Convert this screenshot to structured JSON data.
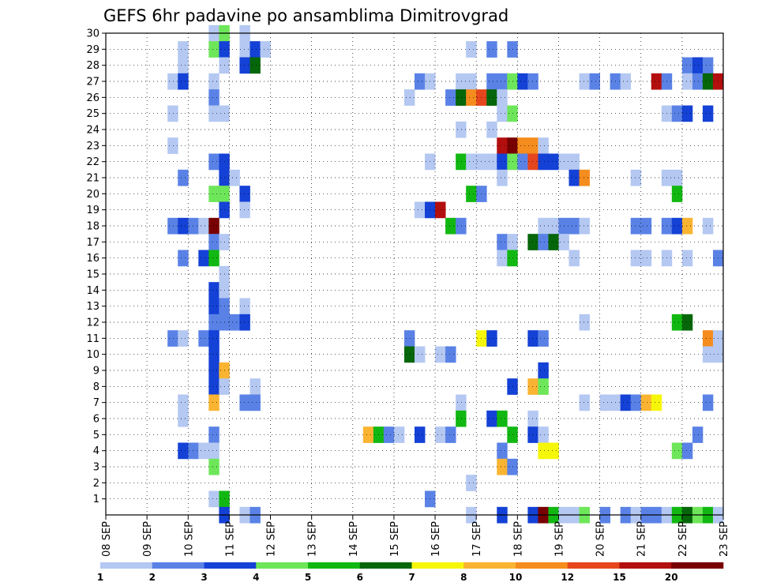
{
  "chart_data": {
    "type": "heatmap",
    "title": "GEFS 6hr padavine po ansamblima Dimitrovgrad",
    "xlabel": "",
    "ylabel": "",
    "x_tick_labels": [
      "08 SEP",
      "09 SEP",
      "10 SEP",
      "11 SEP",
      "12 SEP",
      "13 SEP",
      "14 SEP",
      "15 SEP",
      "16 SEP",
      "17 SEP",
      "18 SEP",
      "19 SEP",
      "20 SEP",
      "21 SEP",
      "22 SEP",
      "23 SEP"
    ],
    "x_steps_per_day": 4,
    "x_range_steps": [
      0,
      60
    ],
    "y_tick_labels": [
      "1",
      "2",
      "3",
      "4",
      "5",
      "6",
      "7",
      "8",
      "9",
      "10",
      "11",
      "12",
      "13",
      "14",
      "15",
      "16",
      "17",
      "18",
      "19",
      "20",
      "21",
      "22",
      "23",
      "24",
      "25",
      "26",
      "27",
      "28",
      "29",
      "30"
    ],
    "y_range_members": [
      0,
      30
    ],
    "grid": "dotted",
    "colorbar": {
      "position": "bottom",
      "labels": [
        "1",
        "2",
        "3",
        "4",
        "5",
        "6",
        "7",
        "8",
        "10",
        "12",
        "15",
        "20"
      ],
      "colors": [
        "#b4c8f2",
        "#5a82e6",
        "#1441d6",
        "#6ee65a",
        "#12b812",
        "#06660a",
        "#f6f60a",
        "#fab432",
        "#f58c1e",
        "#e6461e",
        "#b40f0f",
        "#780000"
      ]
    },
    "cells_format": "[member, step, colorbar_class]",
    "cells": [
      [
        30,
        10,
        0
      ],
      [
        30,
        11,
        3
      ],
      [
        30,
        13,
        0
      ],
      [
        29,
        7,
        0
      ],
      [
        29,
        10,
        3
      ],
      [
        29,
        11,
        2
      ],
      [
        29,
        13,
        0
      ],
      [
        29,
        14,
        2
      ],
      [
        29,
        15,
        0
      ],
      [
        29,
        35,
        0
      ],
      [
        29,
        37,
        1
      ],
      [
        29,
        39,
        1
      ],
      [
        28,
        7,
        0
      ],
      [
        28,
        11,
        0
      ],
      [
        28,
        13,
        2
      ],
      [
        28,
        14,
        5
      ],
      [
        28,
        56,
        1
      ],
      [
        28,
        57,
        2
      ],
      [
        28,
        58,
        1
      ],
      [
        27,
        6,
        0
      ],
      [
        27,
        7,
        2
      ],
      [
        27,
        10,
        0
      ],
      [
        27,
        30,
        1
      ],
      [
        27,
        31,
        0
      ],
      [
        27,
        34,
        0
      ],
      [
        27,
        35,
        0
      ],
      [
        27,
        37,
        1
      ],
      [
        27,
        38,
        1
      ],
      [
        27,
        39,
        3
      ],
      [
        27,
        40,
        2
      ],
      [
        27,
        41,
        1
      ],
      [
        27,
        46,
        0
      ],
      [
        27,
        47,
        1
      ],
      [
        27,
        49,
        1
      ],
      [
        27,
        50,
        0
      ],
      [
        27,
        53,
        10
      ],
      [
        27,
        54,
        1
      ],
      [
        27,
        56,
        0
      ],
      [
        27,
        57,
        1
      ],
      [
        27,
        58,
        5
      ],
      [
        27,
        59,
        10
      ],
      [
        26,
        10,
        1
      ],
      [
        26,
        29,
        0
      ],
      [
        26,
        33,
        1
      ],
      [
        26,
        34,
        5
      ],
      [
        26,
        35,
        8
      ],
      [
        26,
        36,
        9
      ],
      [
        26,
        37,
        5
      ],
      [
        26,
        38,
        0
      ],
      [
        25,
        6,
        0
      ],
      [
        25,
        10,
        0
      ],
      [
        25,
        11,
        0
      ],
      [
        25,
        38,
        0
      ],
      [
        25,
        39,
        3
      ],
      [
        25,
        54,
        0
      ],
      [
        25,
        55,
        1
      ],
      [
        25,
        56,
        2
      ],
      [
        25,
        58,
        2
      ],
      [
        24,
        34,
        0
      ],
      [
        24,
        37,
        0
      ],
      [
        23,
        6,
        0
      ],
      [
        23,
        38,
        10
      ],
      [
        23,
        39,
        11
      ],
      [
        23,
        40,
        8
      ],
      [
        23,
        41,
        8
      ],
      [
        23,
        42,
        0
      ],
      [
        22,
        10,
        1
      ],
      [
        22,
        11,
        2
      ],
      [
        22,
        31,
        0
      ],
      [
        22,
        34,
        4
      ],
      [
        22,
        35,
        0
      ],
      [
        22,
        36,
        0
      ],
      [
        22,
        37,
        0
      ],
      [
        22,
        38,
        2
      ],
      [
        22,
        39,
        3
      ],
      [
        22,
        40,
        1
      ],
      [
        22,
        41,
        9
      ],
      [
        22,
        42,
        2
      ],
      [
        22,
        43,
        2
      ],
      [
        22,
        44,
        0
      ],
      [
        22,
        45,
        0
      ],
      [
        21,
        7,
        1
      ],
      [
        21,
        11,
        2
      ],
      [
        21,
        12,
        0
      ],
      [
        21,
        38,
        0
      ],
      [
        21,
        45,
        2
      ],
      [
        21,
        46,
        8
      ],
      [
        21,
        51,
        0
      ],
      [
        21,
        54,
        0
      ],
      [
        21,
        55,
        0
      ],
      [
        20,
        10,
        3
      ],
      [
        20,
        11,
        3
      ],
      [
        20,
        13,
        2
      ],
      [
        20,
        35,
        4
      ],
      [
        20,
        36,
        1
      ],
      [
        20,
        55,
        4
      ],
      [
        19,
        11,
        2
      ],
      [
        19,
        13,
        0
      ],
      [
        19,
        30,
        0
      ],
      [
        19,
        31,
        2
      ],
      [
        19,
        32,
        10
      ],
      [
        18,
        6,
        1
      ],
      [
        18,
        7,
        2
      ],
      [
        18,
        8,
        1
      ],
      [
        18,
        9,
        0
      ],
      [
        18,
        10,
        11
      ],
      [
        18,
        33,
        4
      ],
      [
        18,
        34,
        1
      ],
      [
        18,
        42,
        0
      ],
      [
        18,
        43,
        0
      ],
      [
        18,
        44,
        1
      ],
      [
        18,
        45,
        1
      ],
      [
        18,
        46,
        0
      ],
      [
        18,
        51,
        1
      ],
      [
        18,
        52,
        1
      ],
      [
        18,
        54,
        1
      ],
      [
        18,
        55,
        2
      ],
      [
        18,
        56,
        7
      ],
      [
        18,
        58,
        0
      ],
      [
        17,
        10,
        1
      ],
      [
        17,
        11,
        0
      ],
      [
        17,
        38,
        1
      ],
      [
        17,
        39,
        0
      ],
      [
        17,
        41,
        5
      ],
      [
        17,
        42,
        1
      ],
      [
        17,
        43,
        5
      ],
      [
        17,
        44,
        0
      ],
      [
        16,
        7,
        1
      ],
      [
        16,
        9,
        2
      ],
      [
        16,
        10,
        4
      ],
      [
        16,
        38,
        0
      ],
      [
        16,
        39,
        4
      ],
      [
        16,
        45,
        0
      ],
      [
        16,
        51,
        0
      ],
      [
        16,
        52,
        0
      ],
      [
        16,
        54,
        0
      ],
      [
        16,
        56,
        0
      ],
      [
        16,
        59,
        1
      ],
      [
        15,
        11,
        0
      ],
      [
        14,
        10,
        2
      ],
      [
        14,
        11,
        0
      ],
      [
        13,
        10,
        2
      ],
      [
        13,
        11,
        1
      ],
      [
        13,
        13,
        0
      ],
      [
        12,
        10,
        1
      ],
      [
        12,
        11,
        1
      ],
      [
        12,
        12,
        1
      ],
      [
        12,
        13,
        2
      ],
      [
        12,
        46,
        0
      ],
      [
        12,
        55,
        4
      ],
      [
        12,
        56,
        5
      ],
      [
        11,
        6,
        1
      ],
      [
        11,
        7,
        0
      ],
      [
        11,
        9,
        1
      ],
      [
        11,
        10,
        2
      ],
      [
        11,
        29,
        1
      ],
      [
        11,
        36,
        6
      ],
      [
        11,
        37,
        2
      ],
      [
        11,
        41,
        2
      ],
      [
        11,
        42,
        1
      ],
      [
        11,
        58,
        8
      ],
      [
        11,
        59,
        0
      ],
      [
        10,
        10,
        2
      ],
      [
        10,
        29,
        5
      ],
      [
        10,
        30,
        0
      ],
      [
        10,
        32,
        0
      ],
      [
        10,
        33,
        1
      ],
      [
        10,
        58,
        0
      ],
      [
        10,
        59,
        0
      ],
      [
        9,
        10,
        2
      ],
      [
        9,
        11,
        7
      ],
      [
        9,
        42,
        2
      ],
      [
        8,
        10,
        2
      ],
      [
        8,
        11,
        0
      ],
      [
        8,
        14,
        0
      ],
      [
        8,
        39,
        2
      ],
      [
        8,
        41,
        7
      ],
      [
        8,
        42,
        3
      ],
      [
        7,
        7,
        0
      ],
      [
        7,
        10,
        7
      ],
      [
        7,
        13,
        1
      ],
      [
        7,
        14,
        1
      ],
      [
        7,
        34,
        0
      ],
      [
        7,
        46,
        0
      ],
      [
        7,
        48,
        0
      ],
      [
        7,
        49,
        0
      ],
      [
        7,
        50,
        2
      ],
      [
        7,
        51,
        1
      ],
      [
        7,
        52,
        7
      ],
      [
        7,
        53,
        6
      ],
      [
        7,
        58,
        1
      ],
      [
        6,
        7,
        0
      ],
      [
        6,
        34,
        4
      ],
      [
        6,
        37,
        2
      ],
      [
        6,
        38,
        4
      ],
      [
        6,
        41,
        0
      ],
      [
        5,
        10,
        1
      ],
      [
        5,
        25,
        7
      ],
      [
        5,
        26,
        4
      ],
      [
        5,
        27,
        1
      ],
      [
        5,
        28,
        0
      ],
      [
        5,
        30,
        2
      ],
      [
        5,
        32,
        0
      ],
      [
        5,
        33,
        1
      ],
      [
        5,
        39,
        4
      ],
      [
        5,
        41,
        2
      ],
      [
        5,
        42,
        0
      ],
      [
        5,
        57,
        1
      ],
      [
        4,
        7,
        2
      ],
      [
        4,
        8,
        1
      ],
      [
        4,
        9,
        0
      ],
      [
        4,
        10,
        0
      ],
      [
        4,
        38,
        1
      ],
      [
        4,
        42,
        6
      ],
      [
        4,
        43,
        6
      ],
      [
        4,
        55,
        3
      ],
      [
        4,
        56,
        1
      ],
      [
        3,
        10,
        3
      ],
      [
        3,
        38,
        7
      ],
      [
        3,
        39,
        1
      ],
      [
        2,
        35,
        0
      ],
      [
        1,
        10,
        0
      ],
      [
        1,
        11,
        4
      ],
      [
        1,
        31,
        1
      ],
      [
        0,
        11,
        2
      ],
      [
        0,
        13,
        0
      ],
      [
        0,
        14,
        1
      ],
      [
        0,
        35,
        0
      ],
      [
        0,
        38,
        2
      ],
      [
        0,
        41,
        2
      ],
      [
        0,
        42,
        11
      ],
      [
        0,
        43,
        4
      ],
      [
        0,
        44,
        0
      ],
      [
        0,
        45,
        0
      ],
      [
        0,
        46,
        3
      ],
      [
        0,
        48,
        1
      ],
      [
        0,
        50,
        1
      ],
      [
        0,
        51,
        0
      ],
      [
        0,
        52,
        1
      ],
      [
        0,
        53,
        1
      ],
      [
        0,
        54,
        0
      ],
      [
        0,
        55,
        4
      ],
      [
        0,
        56,
        5
      ],
      [
        0,
        57,
        3
      ],
      [
        0,
        58,
        4
      ],
      [
        0,
        59,
        0
      ]
    ]
  }
}
